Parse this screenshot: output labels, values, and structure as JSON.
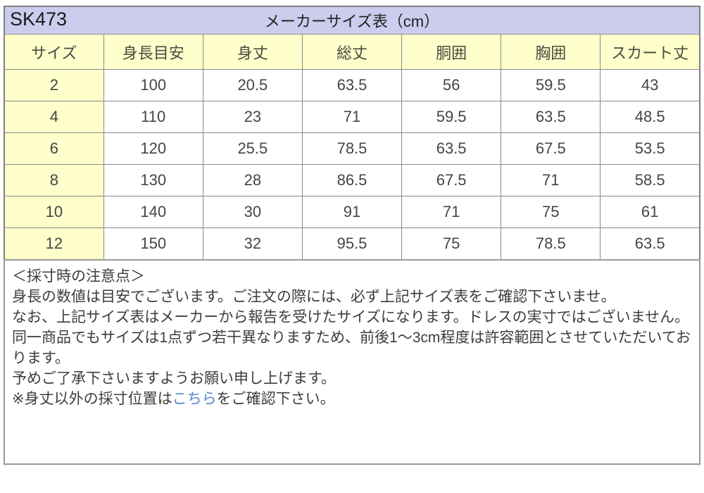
{
  "banner": {
    "product_code": "SK473",
    "title": "メーカーサイズ表（cm）"
  },
  "size_table": {
    "columns": [
      "サイズ",
      "身長目安",
      "身丈",
      "総丈",
      "胴囲",
      "胸囲",
      "スカート丈"
    ],
    "rows": [
      [
        "2",
        "100",
        "20.5",
        "63.5",
        "56",
        "59.5",
        "43"
      ],
      [
        "4",
        "110",
        "23",
        "71",
        "59.5",
        "63.5",
        "48.5"
      ],
      [
        "6",
        "120",
        "25.5",
        "78.5",
        "63.5",
        "67.5",
        "53.5"
      ],
      [
        "8",
        "130",
        "28",
        "86.5",
        "67.5",
        "71",
        "58.5"
      ],
      [
        "10",
        "140",
        "30",
        "91",
        "71",
        "75",
        "61"
      ],
      [
        "12",
        "150",
        "32",
        "95.5",
        "75",
        "78.5",
        "63.5"
      ]
    ]
  },
  "notes": {
    "heading": "＜採寸時の注意点＞",
    "para1": "身長の数値は目安でございます。ご注文の際には、必ず上記サイズ表をご確認下さいませ。",
    "para2": "なお、上記サイズ表はメーカーから報告を受けたサイズになります。ドレスの実寸ではございません。",
    "para3": "同一商品でもサイズは1点ずつ若干異なりますため、前後1～3cm程度は許容範囲とさせていただいております。",
    "para4": "予めご了承下さいますようお願い申し上げます。",
    "para5_prefix": "※身丈以外の採寸位置は",
    "para5_link": "こちら",
    "para5_suffix": "をご確認下さい。"
  },
  "colors": {
    "banner_bg": "#ccccee",
    "header_bg": "#ffffcc",
    "border": "#8a8a8a",
    "link": "#5588cc",
    "text": "#3d3d3d"
  }
}
